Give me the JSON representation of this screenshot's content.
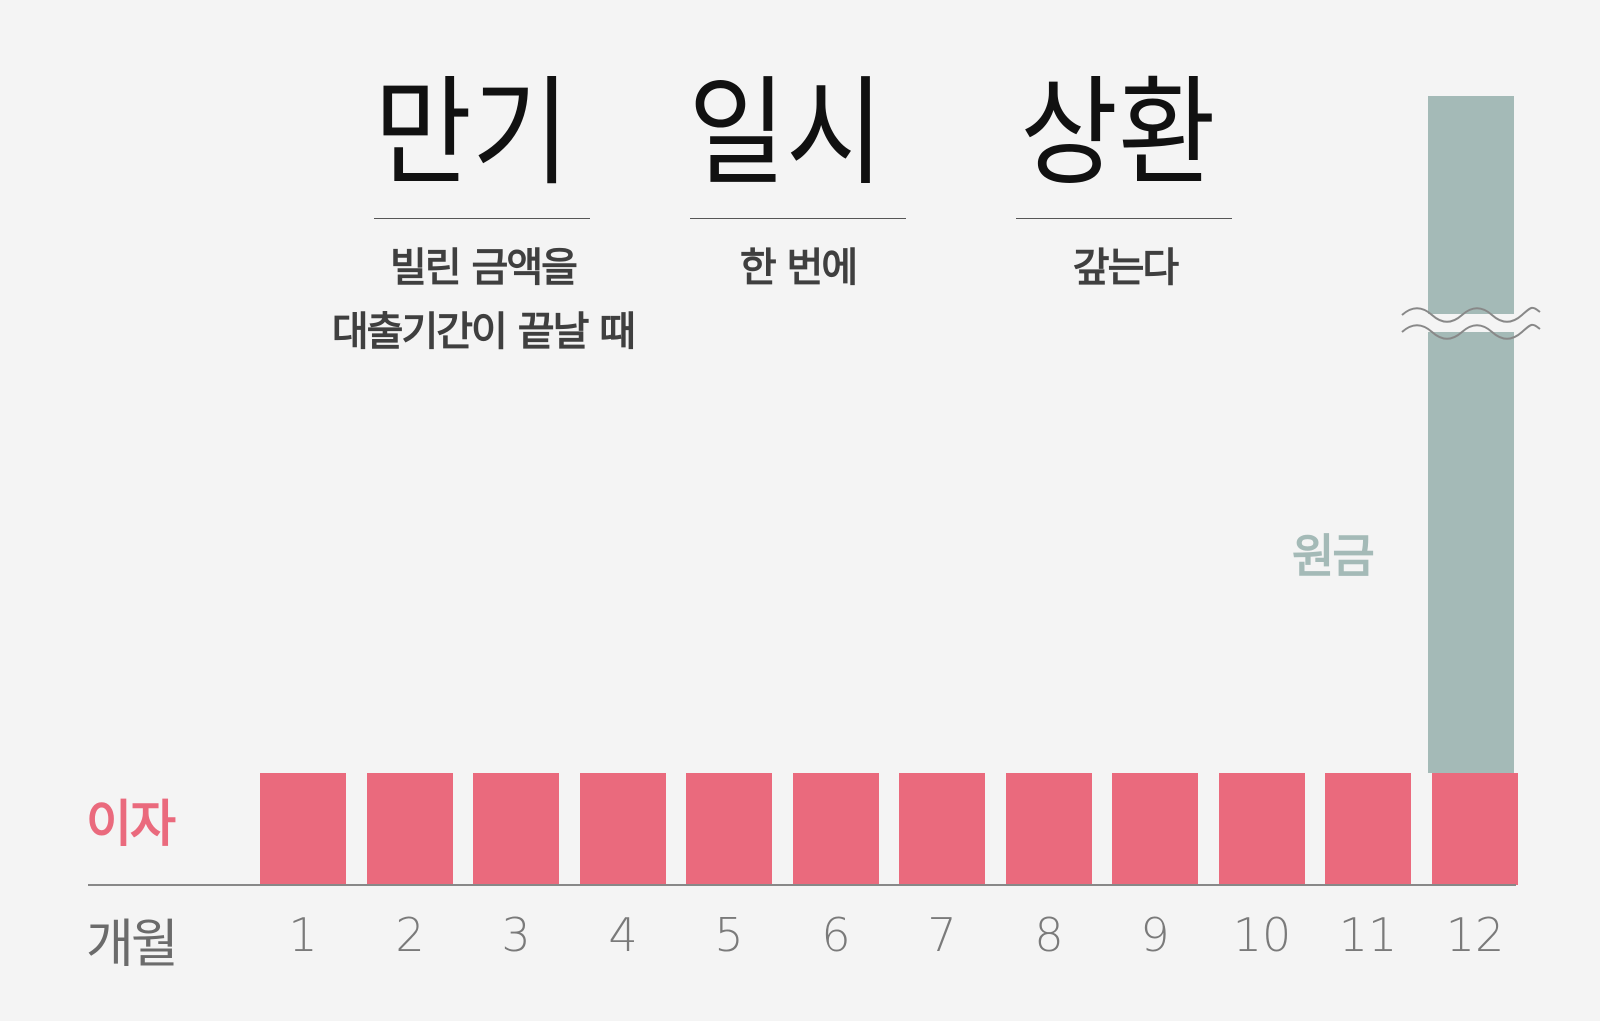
{
  "title": {
    "words": [
      "만기",
      "일시",
      "상환"
    ],
    "explanations": [
      [
        "빌린 금액을",
        "대출기간이 끝날 때"
      ],
      [
        "한 번에"
      ],
      [
        "갚는다"
      ]
    ]
  },
  "chart_data": {
    "type": "bar",
    "title": "만기 일시 상환",
    "xlabel": "개월",
    "categories": [
      "1",
      "2",
      "3",
      "4",
      "5",
      "6",
      "7",
      "8",
      "9",
      "10",
      "11",
      "12"
    ],
    "series": [
      {
        "name": "이자",
        "values": [
          1,
          1,
          1,
          1,
          1,
          1,
          1,
          1,
          1,
          1,
          1,
          1
        ],
        "color": "#ea6a7d"
      },
      {
        "name": "원금",
        "values": [
          0,
          0,
          0,
          0,
          0,
          0,
          0,
          0,
          0,
          0,
          0,
          1
        ],
        "color": "#a4bab7"
      }
    ],
    "stacked": true,
    "axis_break": "principal bar truncated (wavy break mark)"
  }
}
